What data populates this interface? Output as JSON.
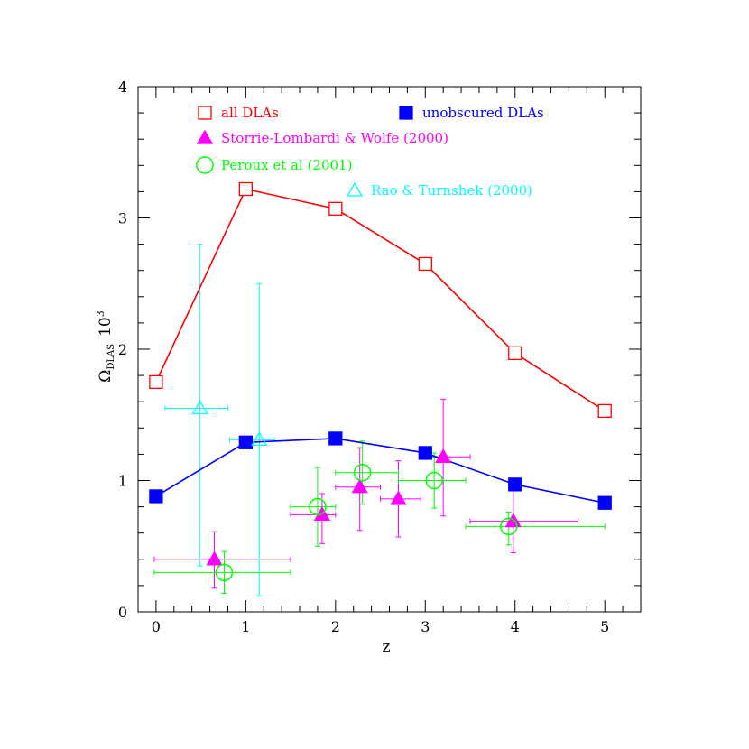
{
  "chart_data": {
    "type": "scatter",
    "xlabel": "z",
    "ylabel": {
      "symbol": "Ω",
      "subscript": "DLAS",
      "suffix": "10",
      "superscript": "3"
    },
    "xlim": [
      -0.2,
      5.4
    ],
    "ylim": [
      0,
      4.0
    ],
    "xticks": [
      0,
      1,
      2,
      3,
      4,
      5
    ],
    "yticks": [
      0,
      1,
      2,
      3,
      4
    ],
    "grid": false,
    "legend_position": "top",
    "series": [
      {
        "name": "all DLAs",
        "color": "#ff0000",
        "marker": "open-square",
        "connected": true,
        "x": [
          0,
          1,
          2,
          3,
          4,
          5
        ],
        "y": [
          1.75,
          3.22,
          3.07,
          2.65,
          1.97,
          1.53
        ]
      },
      {
        "name": "unobscured DLAs",
        "color": "#0000ff",
        "marker": "filled-square",
        "connected": true,
        "x": [
          0,
          1,
          2,
          3,
          4,
          5
        ],
        "y": [
          0.88,
          1.29,
          1.32,
          1.21,
          0.97,
          0.83
        ]
      },
      {
        "name": "Storrie-Lombardi & Wolfe (2000)",
        "color": "#ff00ff",
        "marker": "filled-triangle",
        "connected": false,
        "points": [
          {
            "x": 0.65,
            "y": 0.4,
            "xlo": -0.02,
            "xhi": 1.5,
            "ylo": 0.18,
            "yhi": 0.61
          },
          {
            "x": 1.85,
            "y": 0.74,
            "xlo": 1.5,
            "xhi": 2.0,
            "ylo": 0.52,
            "yhi": 0.9
          },
          {
            "x": 2.27,
            "y": 0.95,
            "xlo": 2.0,
            "xhi": 2.5,
            "ylo": 0.62,
            "yhi": 1.25
          },
          {
            "x": 2.7,
            "y": 0.86,
            "xlo": 2.5,
            "xhi": 2.95,
            "ylo": 0.57,
            "yhi": 1.15
          },
          {
            "x": 3.2,
            "y": 1.18,
            "xlo": 2.95,
            "xhi": 3.5,
            "ylo": 0.73,
            "yhi": 1.62
          },
          {
            "x": 3.98,
            "y": 0.69,
            "xlo": 3.5,
            "xhi": 4.7,
            "ylo": 0.45,
            "yhi": 0.95
          }
        ]
      },
      {
        "name": "Peroux et al (2001)",
        "color": "#00ff00",
        "marker": "open-circle",
        "connected": false,
        "points": [
          {
            "x": 0.76,
            "y": 0.3,
            "xlo": -0.02,
            "xhi": 1.5,
            "ylo": 0.14,
            "yhi": 0.46
          },
          {
            "x": 1.8,
            "y": 0.8,
            "xlo": 1.5,
            "xhi": 2.0,
            "ylo": 0.5,
            "yhi": 1.1
          },
          {
            "x": 2.3,
            "y": 1.06,
            "xlo": 2.0,
            "xhi": 2.7,
            "ylo": 0.82,
            "yhi": 1.3
          },
          {
            "x": 3.1,
            "y": 1.0,
            "xlo": 2.7,
            "xhi": 3.45,
            "ylo": 0.79,
            "yhi": 1.21
          },
          {
            "x": 3.93,
            "y": 0.65,
            "xlo": 3.45,
            "xhi": 5.0,
            "ylo": 0.51,
            "yhi": 0.76
          }
        ]
      },
      {
        "name": "Rao & Turnshek (2000)",
        "color": "#00ffff",
        "marker": "open-triangle",
        "connected": false,
        "points": [
          {
            "x": 0.49,
            "y": 1.55,
            "xlo": 0.1,
            "xhi": 0.8,
            "ylo": 0.35,
            "yhi": 2.8
          },
          {
            "x": 1.15,
            "y": 1.31,
            "xlo": 0.82,
            "xhi": 1.32,
            "ylo": 0.12,
            "yhi": 2.5
          }
        ]
      }
    ]
  }
}
